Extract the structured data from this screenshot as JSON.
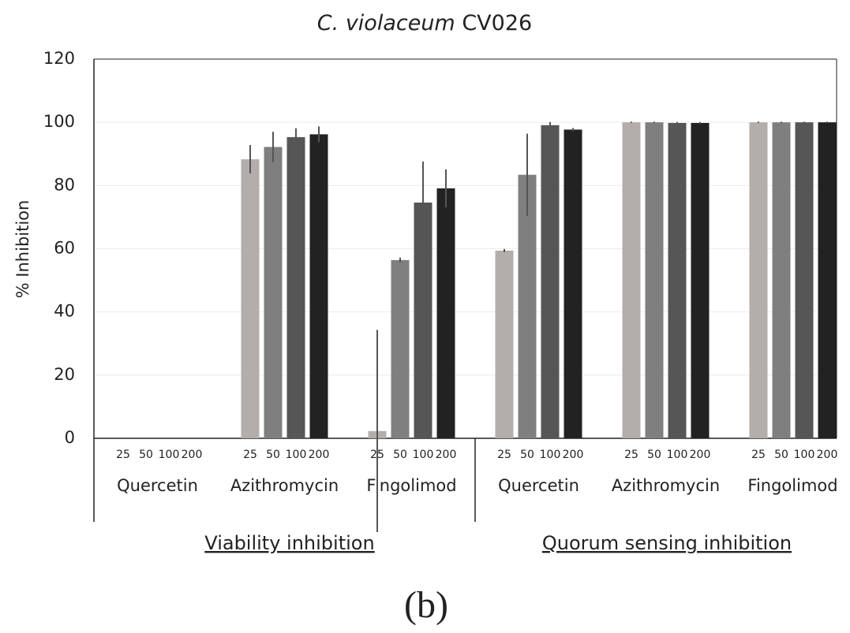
{
  "chart_data": {
    "type": "bar",
    "title": [
      "C. violaceum",
      "CV026"
    ],
    "ylabel": "% Inhibition",
    "caption": "(b)",
    "categories": [
      "Quercetin",
      "Azithromycin",
      "Fingolimod",
      "Quercetin",
      "Azithromycin",
      "Fingolimod"
    ],
    "group_labels": [
      "Viability inhibition",
      "Quorum sensing inhibition"
    ],
    "series": [
      {
        "name": "25",
        "color": "#b3aeac",
        "values": [
          0,
          88.3,
          2.3,
          59.4,
          100,
          100
        ],
        "errors": [
          0,
          4.5,
          32,
          0.5,
          0.2,
          0.2
        ]
      },
      {
        "name": "50",
        "color": "#7f7f7f",
        "values": [
          0,
          92.2,
          56.4,
          83.4,
          100,
          100
        ],
        "errors": [
          0,
          4.8,
          0.8,
          13,
          0.2,
          0.2
        ]
      },
      {
        "name": "100",
        "color": "#565656",
        "values": [
          0,
          95.3,
          74.6,
          99.1,
          99.8,
          100
        ],
        "errors": [
          0,
          2.8,
          13,
          1,
          0.3,
          0.2
        ]
      },
      {
        "name": "200",
        "color": "#222222",
        "values": [
          0,
          96.2,
          79.1,
          97.7,
          99.8,
          100
        ],
        "errors": [
          0,
          2.5,
          6,
          0.5,
          0.3,
          0.2
        ]
      }
    ],
    "ylim": [
      0,
      120
    ],
    "yticks": [
      0,
      20,
      40,
      60,
      80,
      100,
      120
    ],
    "grid": true
  }
}
